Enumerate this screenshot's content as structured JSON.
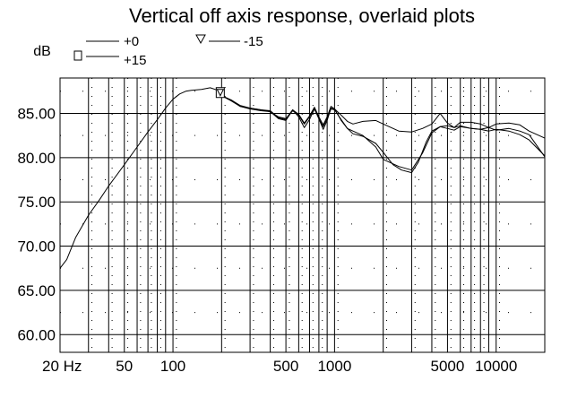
{
  "chart_data": {
    "type": "line",
    "title": "Vertical off axis response, overlaid plots",
    "ylabel": "dB",
    "xlabel": "",
    "x_scale": "log",
    "xlim": [
      20,
      20000
    ],
    "ylim": [
      58,
      89
    ],
    "grid": true,
    "legend_placement": "top-left",
    "y_ticks": [
      60,
      65,
      70,
      75,
      80,
      85
    ],
    "y_tick_labels": [
      "60.00",
      "65.00",
      "70.00",
      "75.00",
      "80.00",
      "85.00"
    ],
    "x_ticks": [
      20,
      50,
      100,
      500,
      1000,
      5000,
      10000
    ],
    "x_tick_labels": [
      "20 Hz",
      "50",
      "100",
      "500",
      "1000",
      "5000",
      "10000"
    ],
    "legend": [
      {
        "label": "+0",
        "marker": "none"
      },
      {
        "label": "-15",
        "marker": "triangle-down"
      },
      {
        "label": "+15",
        "marker": "square"
      }
    ],
    "series": [
      {
        "name": "+0",
        "x": [
          20,
          22,
          25,
          30,
          35,
          40,
          50,
          60,
          70,
          80,
          90,
          100,
          110,
          120,
          130,
          150,
          170,
          190,
          200,
          230,
          260,
          300,
          350,
          400,
          450,
          500,
          550,
          600,
          650,
          700,
          750,
          800,
          850,
          900,
          950,
          1000,
          1100,
          1200,
          1300,
          1500,
          1800,
          2000,
          2500,
          3000,
          3500,
          4000,
          4500,
          5000,
          5500,
          6000,
          7000,
          8000,
          9000,
          10000,
          12000,
          14000,
          16000,
          20000
        ],
        "y": [
          67.5,
          68.5,
          71,
          73.5,
          75.2,
          76.8,
          79.2,
          81.2,
          82.9,
          84.3,
          85.6,
          86.6,
          87.2,
          87.5,
          87.6,
          87.7,
          87.9,
          87.6,
          87.0,
          86.5,
          85.8,
          85.6,
          85.4,
          85.3,
          84.5,
          84.3,
          85.3,
          84.8,
          83.8,
          84.6,
          85.6,
          84.4,
          83.5,
          84.4,
          85.5,
          85.4,
          84.3,
          83.3,
          83.0,
          82.5,
          81.2,
          79.8,
          79.0,
          78.6,
          80.5,
          82.8,
          83.5,
          83.6,
          83.4,
          83.6,
          83.3,
          83.2,
          83.4,
          83.1,
          83.3,
          83.0,
          82.6,
          80.1
        ]
      },
      {
        "name": "-15",
        "x": [
          200,
          230,
          260,
          300,
          350,
          400,
          450,
          500,
          550,
          600,
          650,
          700,
          750,
          800,
          850,
          900,
          950,
          1000,
          1100,
          1200,
          1300,
          1500,
          1800,
          2000,
          2500,
          3000,
          3500,
          4000,
          4500,
          5000,
          5500,
          6000,
          7000,
          8000,
          9000,
          10000,
          12000,
          14000,
          16000,
          20000
        ],
        "y": [
          87.0,
          86.5,
          85.9,
          85.6,
          85.4,
          85.2,
          84.6,
          84.4,
          85.4,
          84.9,
          83.9,
          84.7,
          85.7,
          84.6,
          83.7,
          84.6,
          85.8,
          85.5,
          84.8,
          84.1,
          83.8,
          84.1,
          84.2,
          83.8,
          83.0,
          82.9,
          83.3,
          83.8,
          85.0,
          83.9,
          83.4,
          84.0,
          84.0,
          83.8,
          83.4,
          83.8,
          83.9,
          83.7,
          83.0,
          82.2
        ]
      },
      {
        "name": "+15",
        "x": [
          200,
          230,
          260,
          300,
          350,
          400,
          450,
          500,
          550,
          600,
          650,
          700,
          750,
          800,
          850,
          900,
          950,
          1000,
          1100,
          1200,
          1300,
          1500,
          1800,
          2000,
          2300,
          2600,
          3000,
          3300,
          3700,
          4000,
          4500,
          5000,
          5500,
          6000,
          7000,
          8000,
          9000,
          10000,
          12000,
          14000,
          16000,
          20000
        ],
        "y": [
          87.0,
          86.4,
          85.8,
          85.5,
          85.3,
          85.2,
          84.4,
          84.2,
          85.4,
          84.6,
          83.4,
          84.3,
          85.5,
          84.4,
          83.2,
          84.2,
          85.6,
          85.5,
          84.2,
          83.3,
          82.7,
          82.4,
          81.6,
          80.6,
          79.2,
          78.6,
          78.3,
          79.5,
          81.8,
          83.0,
          83.5,
          83.3,
          83.1,
          83.5,
          83.3,
          83.2,
          83.0,
          83.2,
          83.0,
          82.6,
          82.0,
          80.2
        ]
      }
    ]
  }
}
